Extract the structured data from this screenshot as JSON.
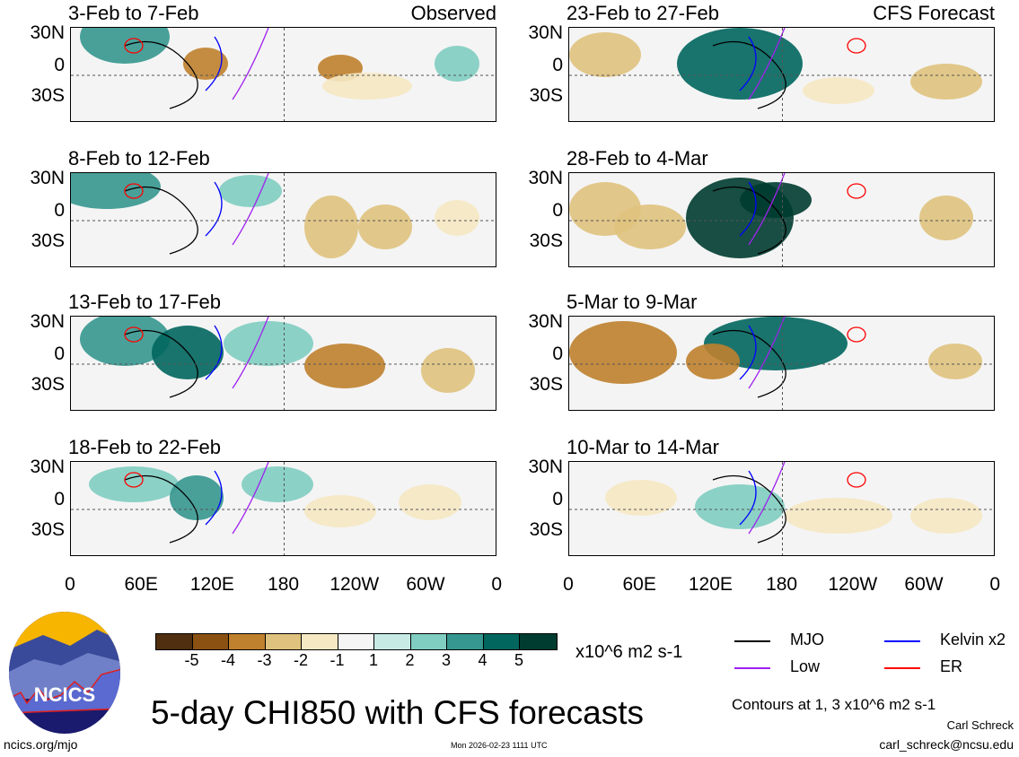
{
  "panels_left": [
    {
      "title": "3-Feb to 7-Feb",
      "label": "Observed"
    },
    {
      "title": "8-Feb to 12-Feb"
    },
    {
      "title": "13-Feb to 17-Feb"
    },
    {
      "title": "18-Feb to 22-Feb"
    }
  ],
  "panels_right": [
    {
      "title": "23-Feb to 27-Feb",
      "label": "CFS Forecast"
    },
    {
      "title": "28-Feb to 4-Mar"
    },
    {
      "title": "5-Mar to 9-Mar"
    },
    {
      "title": "10-Mar to 14-Mar"
    }
  ],
  "lat_labels": [
    "30N",
    "0",
    "30S"
  ],
  "lon_labels": [
    "0",
    "60E",
    "120E",
    "180",
    "120W",
    "60W",
    "0"
  ],
  "colorbar": {
    "colors": [
      "#4f2f0f",
      "#8a5112",
      "#bf812d",
      "#dfc27d",
      "#f6e8c3",
      "#f5f5f5",
      "#c7eae5",
      "#80cdc1",
      "#35978f",
      "#01665e",
      "#003c30"
    ],
    "labels": [
      "-5",
      "-4",
      "-3",
      "-2",
      "-1",
      "1",
      "2",
      "3",
      "4",
      "5"
    ],
    "units": "x10^6 m2 s-1"
  },
  "legend": [
    {
      "label": "MJO",
      "color": "#000000"
    },
    {
      "label": "Kelvin x2",
      "color": "#0000ff"
    },
    {
      "label": "Low",
      "color": "#a020f0"
    },
    {
      "label": "ER",
      "color": "#ff0000"
    }
  ],
  "logo_text": "NCICS",
  "title": "5-day CHI850 with CFS forecasts",
  "contours_note": "Contours at 1, 3 x10^6 m2 s-1",
  "author": "Carl Schreck",
  "email": "carl_schreck@ncsu.edu",
  "url": "ncics.org/mjo",
  "timestamp": "Mon 2026-02-23 1111 UTC"
}
